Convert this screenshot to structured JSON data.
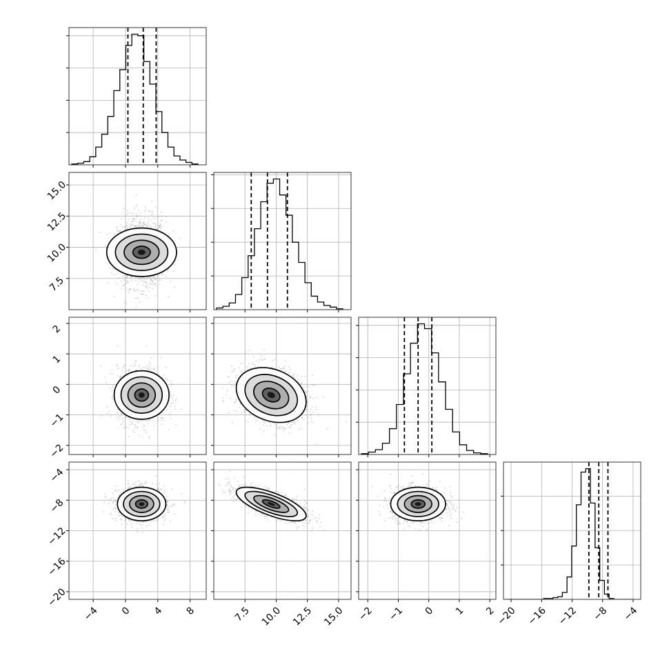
{
  "chart_data": {
    "type": "corner",
    "grid": true,
    "parameters": [
      {
        "range": [
          -7,
          10
        ],
        "ticks": [
          -4,
          0,
          4,
          8
        ],
        "tick_labels": [
          "−4",
          "0",
          "4",
          "8"
        ],
        "mean": 2.0,
        "std": 1.5,
        "quantiles": [
          0.3,
          2.2,
          3.8
        ],
        "histogram_counts": [
          1,
          2,
          4,
          10,
          22,
          38,
          60,
          92,
          118,
          148,
          162,
          160,
          128,
          100,
          66,
          40,
          22,
          11,
          6,
          3,
          1
        ]
      },
      {
        "range": [
          5.0,
          16.0
        ],
        "ticks": [
          7.5,
          10.0,
          12.5,
          15.0
        ],
        "tick_labels": [
          "7.5",
          "10.0",
          "12.5",
          "15.0"
        ],
        "mean": 9.6,
        "std": 1.4,
        "quantiles": [
          8.0,
          9.3,
          10.9
        ],
        "histogram_counts": [
          2,
          4,
          8,
          18,
          38,
          64,
          96,
          128,
          150,
          155,
          136,
          112,
          80,
          56,
          32,
          16,
          9,
          5,
          3,
          1
        ]
      },
      {
        "range": [
          -2.3,
          2.2
        ],
        "ticks": [
          -2,
          -1,
          0,
          1,
          2
        ],
        "tick_labels": [
          "−2",
          "−1",
          "0",
          "1",
          "2"
        ],
        "mean": -0.35,
        "std": 0.45,
        "quantiles": [
          -0.8,
          -0.35,
          0.1
        ],
        "histogram_counts": [
          1,
          3,
          6,
          14,
          32,
          62,
          100,
          138,
          162,
          156,
          126,
          90,
          56,
          28,
          12,
          5,
          2,
          1
        ]
      },
      {
        "range": [
          -21,
          -3
        ],
        "ticks": [
          -20,
          -16,
          -12,
          -8,
          -4
        ],
        "tick_labels": [
          "−20",
          "−16",
          "−12",
          "−8",
          "−4"
        ],
        "mean": -8.5,
        "std": 1.1,
        "quantiles": [
          -9.8,
          -8.5,
          -7.3
        ],
        "histogram_counts": [
          0,
          0,
          0,
          0,
          0,
          0,
          0,
          0,
          1,
          1,
          2,
          3,
          8,
          26,
          62,
          110,
          148,
          152,
          112,
          60,
          22,
          6,
          1,
          0,
          0,
          0,
          0
        ]
      }
    ],
    "pairs": [
      {
        "row": 1,
        "col": 0,
        "correlation": 0.0
      },
      {
        "row": 2,
        "col": 0,
        "correlation": 0.0
      },
      {
        "row": 2,
        "col": 1,
        "correlation": -0.25
      },
      {
        "row": 3,
        "col": 0,
        "correlation": 0.0
      },
      {
        "row": 3,
        "col": 1,
        "correlation": -0.7
      },
      {
        "row": 3,
        "col": 2,
        "correlation": 0.0
      }
    ]
  }
}
